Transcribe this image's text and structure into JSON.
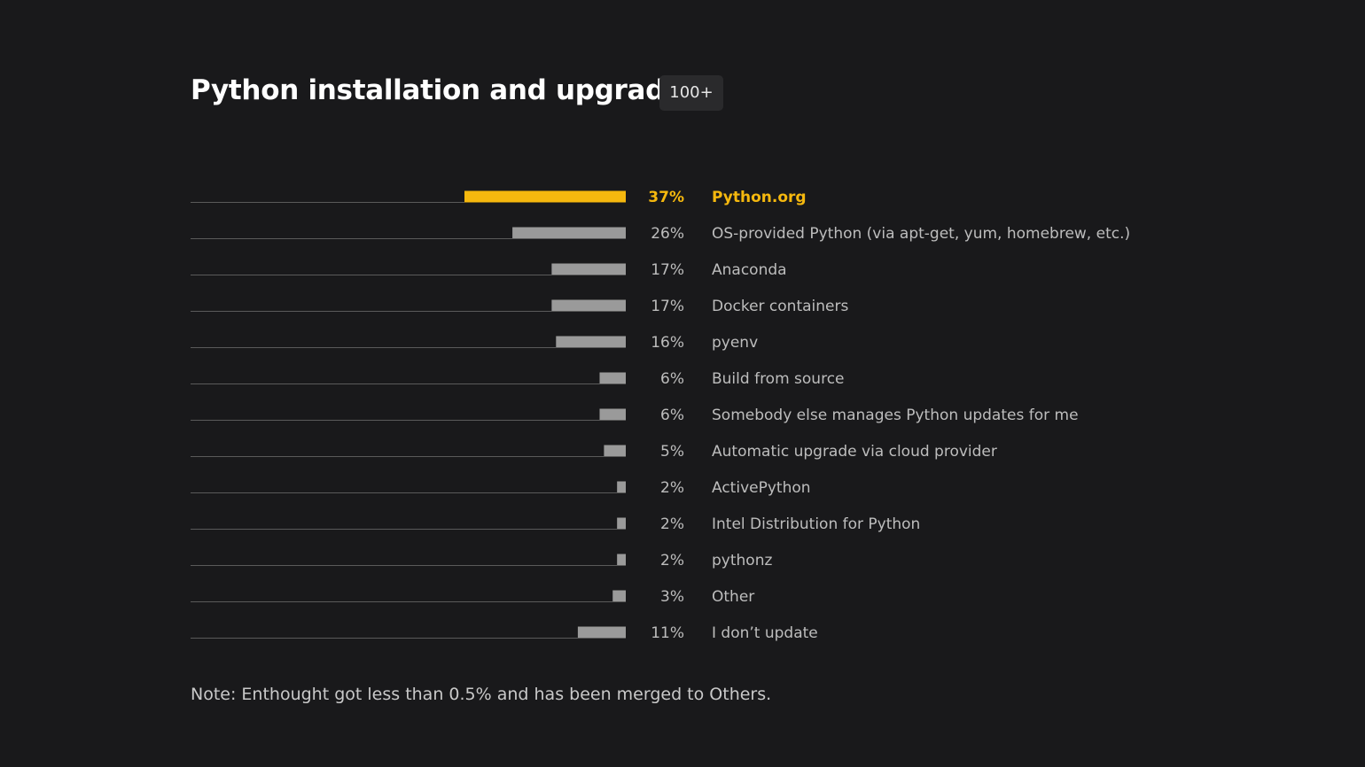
{
  "header": {
    "title": "Python installation and upgrade",
    "badge": "100+"
  },
  "note": "Note: Enthought got less than 0.5% and has been merged to Others.",
  "colors": {
    "background": "#19191b",
    "highlight": "#f5b80e",
    "bar": "#9a9a9a",
    "baseline": "#5a5a5a",
    "text": "#bdbdbd"
  },
  "chart_data": {
    "type": "bar",
    "orientation": "horizontal",
    "unit": "%",
    "xlim": [
      0,
      37
    ],
    "grid": false,
    "highlighted_category": "Python.org",
    "categories": [
      "Python.org",
      "OS-provided Python (via apt-get, yum, homebrew, etc.)",
      "Anaconda",
      "Docker containers",
      "pyenv",
      "Build from source",
      "Somebody else manages Python updates for me",
      "Automatic upgrade via cloud provider",
      "ActivePython",
      "Intel Distribution for Python",
      "pythonz",
      "Other",
      "I don’t update"
    ],
    "values": [
      37,
      26,
      17,
      17,
      16,
      6,
      6,
      5,
      2,
      2,
      2,
      3,
      11
    ],
    "value_labels": [
      "37%",
      "26%",
      "17%",
      "17%",
      "16%",
      "6%",
      "6%",
      "5%",
      "2%",
      "2%",
      "2%",
      "3%",
      "11%"
    ]
  }
}
